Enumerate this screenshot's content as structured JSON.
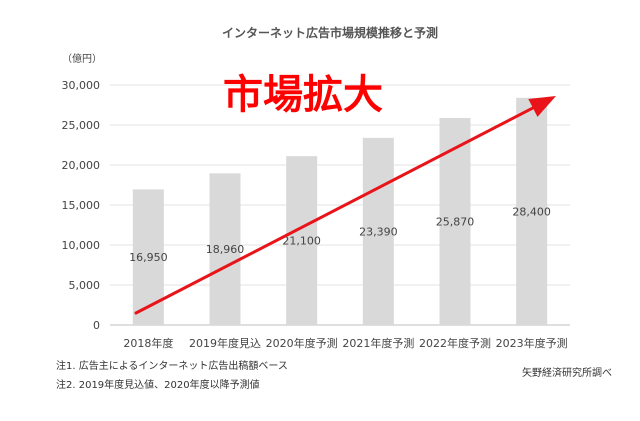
{
  "chart_data": {
    "type": "bar",
    "title": "インターネット広告市場規模推移と予測",
    "unit_label": "（億円）",
    "categories": [
      "2018年度",
      "2019年度見込",
      "2020年度予測",
      "2021年度予測",
      "2022年度予測",
      "2023年度予測"
    ],
    "values": [
      16950,
      18960,
      21100,
      23390,
      25870,
      28400
    ],
    "value_labels": [
      "16,950",
      "18,960",
      "21,100",
      "23,390",
      "25,870",
      "28,400"
    ],
    "ylim": [
      0,
      30000
    ],
    "yticks": [
      0,
      5000,
      10000,
      15000,
      20000,
      25000,
      30000
    ],
    "ytick_labels": [
      "0",
      "5,000",
      "10,000",
      "15,000",
      "20,000",
      "25,000",
      "30,000"
    ],
    "grid": true,
    "bar_color": "#d9d9d9",
    "annotation": {
      "text": "市場拡大",
      "color": "#ff0000",
      "arrow_color": "#e8141a"
    }
  },
  "notes": [
    "注1. 広告主によるインターネット広告出稿額ベース",
    "注2. 2019年度見込値、2020年度以降予測値"
  ],
  "source": "矢野経済研究所調べ"
}
